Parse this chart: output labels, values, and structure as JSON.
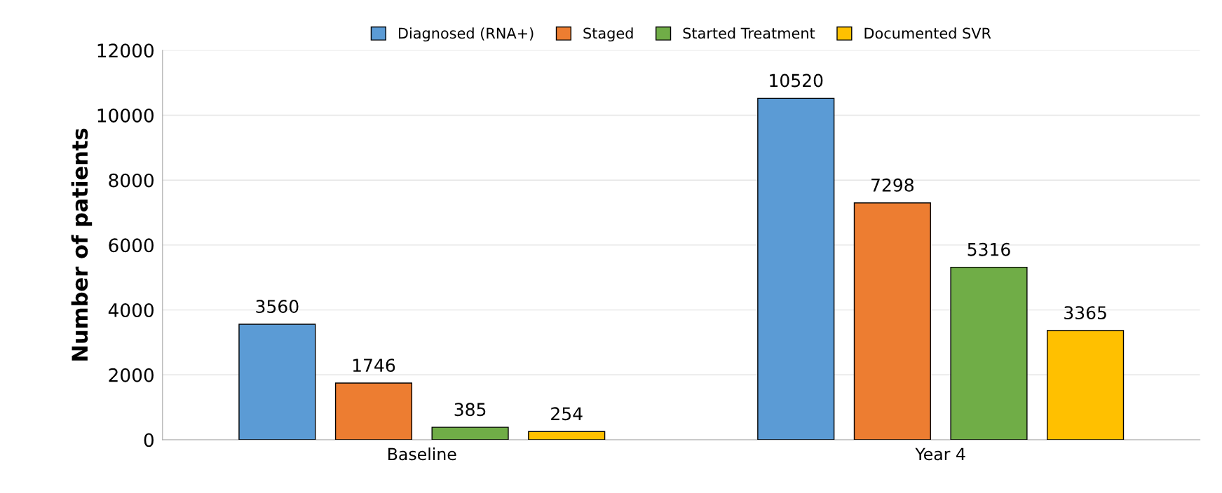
{
  "chart_data": {
    "type": "bar",
    "ylabel": "Number of patients",
    "categories": [
      "Baseline",
      "Year 4"
    ],
    "series": [
      {
        "name": "Diagnosed (RNA+)",
        "color": "#5b9bd5",
        "values": [
          3560,
          10520
        ]
      },
      {
        "name": "Staged",
        "color": "#ed7d31",
        "values": [
          1746,
          7298
        ]
      },
      {
        "name": "Started Treatment",
        "color": "#70ad47",
        "values": [
          385,
          5316
        ]
      },
      {
        "name": "Documented SVR",
        "color": "#ffc000",
        "values": [
          254,
          3365
        ]
      }
    ],
    "ylim": [
      0,
      12000
    ],
    "yticks": [
      0,
      2000,
      4000,
      6000,
      8000,
      10000,
      12000
    ],
    "grid": "y",
    "legend": "top",
    "data_labels": true
  }
}
